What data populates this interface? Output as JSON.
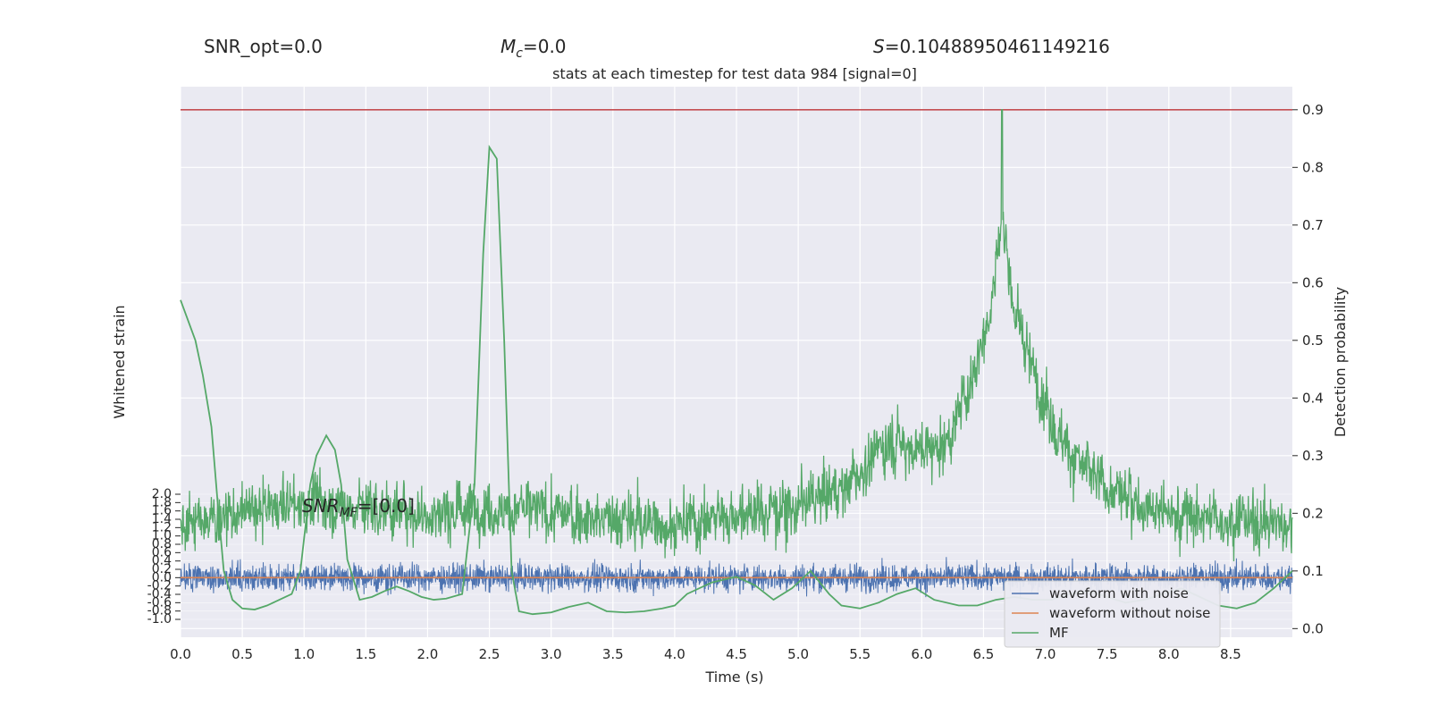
{
  "header": {
    "snr_opt": "SNR_opt=0.0",
    "mc_symbol": "M",
    "mc_sub": "c",
    "mc_value": "=0.0",
    "s_symbol": "S",
    "s_value": "=0.10488950461149216"
  },
  "annotation": {
    "snr_mf_symbol": "SNR",
    "snr_mf_sub": "MF",
    "snr_mf_value": "=[0.0]"
  },
  "chart_data": {
    "type": "line",
    "title": "stats at each timestep for test data 984 [signal=0]",
    "xlabel": "Time (s)",
    "ylabel_left": "Whitened strain",
    "ylabel_right": "Detection probability",
    "xlim": [
      0.0,
      9.0
    ],
    "xticks": [
      "0.0",
      "0.5",
      "1.0",
      "1.5",
      "2.0",
      "2.5",
      "3.0",
      "3.5",
      "4.0",
      "4.5",
      "5.0",
      "5.5",
      "6.0",
      "6.5",
      "7.0",
      "7.5",
      "8.0",
      "8.5"
    ],
    "ylim_right": [
      -0.015,
      0.94
    ],
    "yticks_right": [
      "0.0",
      "0.1",
      "0.2",
      "0.3",
      "0.4",
      "0.5",
      "0.6",
      "0.7",
      "0.8",
      "0.9"
    ],
    "ylim_left": [
      -1.0,
      2.0
    ],
    "yticks_left": [
      "-1.0",
      "-0.8",
      "-0.6",
      "-0.4",
      "-0.2",
      "0.0",
      "0.2",
      "0.4",
      "0.6",
      "0.8",
      "1.0",
      "1.2",
      "1.4",
      "1.6",
      "1.8",
      "2.0"
    ],
    "threshold": 0.9,
    "legend_position": "lower-right",
    "legend": [
      "waveform with noise",
      "waveform without noise",
      "MF"
    ],
    "colors": {
      "threshold": "#c44e52",
      "waveform_with_noise": "#4c72b0",
      "waveform_without_noise": "#dd8452",
      "detection_probability": "#55a868",
      "mf": "#55a868",
      "plot_bg": "#eaeaf2",
      "grid": "#ffffff"
    },
    "series": [
      {
        "name": "waveform with noise",
        "type": "noise",
        "center": 0.0,
        "amplitude": 0.35
      },
      {
        "name": "waveform without noise",
        "values": [
          [
            0.0,
            0.0
          ],
          [
            9.0,
            0.0
          ]
        ]
      },
      {
        "name": "MF",
        "axis": "right",
        "points": [
          [
            0.0,
            0.57
          ],
          [
            0.12,
            0.5
          ],
          [
            0.18,
            0.44
          ],
          [
            0.25,
            0.35
          ],
          [
            0.3,
            0.22
          ],
          [
            0.35,
            0.1
          ],
          [
            0.42,
            0.05
          ],
          [
            0.5,
            0.035
          ],
          [
            0.6,
            0.033
          ],
          [
            0.7,
            0.04
          ],
          [
            0.8,
            0.05
          ],
          [
            0.9,
            0.06
          ],
          [
            0.97,
            0.1
          ],
          [
            1.05,
            0.25
          ],
          [
            1.1,
            0.3
          ],
          [
            1.18,
            0.335
          ],
          [
            1.25,
            0.31
          ],
          [
            1.3,
            0.25
          ],
          [
            1.35,
            0.12
          ],
          [
            1.45,
            0.05
          ],
          [
            1.55,
            0.055
          ],
          [
            1.65,
            0.065
          ],
          [
            1.75,
            0.073
          ],
          [
            1.85,
            0.065
          ],
          [
            1.95,
            0.055
          ],
          [
            2.05,
            0.05
          ],
          [
            2.15,
            0.052
          ],
          [
            2.28,
            0.06
          ],
          [
            2.38,
            0.25
          ],
          [
            2.45,
            0.65
          ],
          [
            2.5,
            0.835
          ],
          [
            2.56,
            0.815
          ],
          [
            2.62,
            0.5
          ],
          [
            2.68,
            0.1
          ],
          [
            2.74,
            0.03
          ],
          [
            2.85,
            0.025
          ],
          [
            3.0,
            0.028
          ],
          [
            3.15,
            0.038
          ],
          [
            3.3,
            0.045
          ],
          [
            3.45,
            0.03
          ],
          [
            3.6,
            0.028
          ],
          [
            3.75,
            0.03
          ],
          [
            3.9,
            0.035
          ],
          [
            4.0,
            0.04
          ],
          [
            4.1,
            0.06
          ],
          [
            4.3,
            0.08
          ],
          [
            4.5,
            0.09
          ],
          [
            4.65,
            0.075
          ],
          [
            4.8,
            0.05
          ],
          [
            4.95,
            0.07
          ],
          [
            5.1,
            0.1
          ],
          [
            5.25,
            0.06
          ],
          [
            5.35,
            0.04
          ],
          [
            5.5,
            0.035
          ],
          [
            5.65,
            0.045
          ],
          [
            5.8,
            0.06
          ],
          [
            5.95,
            0.07
          ],
          [
            6.1,
            0.05
          ],
          [
            6.3,
            0.04
          ],
          [
            6.45,
            0.04
          ],
          [
            6.6,
            0.05
          ],
          [
            6.75,
            0.055
          ],
          [
            6.9,
            0.05
          ],
          [
            7.05,
            0.05
          ],
          [
            7.2,
            0.06
          ],
          [
            7.35,
            0.065
          ],
          [
            7.5,
            0.055
          ],
          [
            7.65,
            0.045
          ],
          [
            7.8,
            0.05
          ],
          [
            7.95,
            0.06
          ],
          [
            8.1,
            0.07
          ],
          [
            8.25,
            0.055
          ],
          [
            8.4,
            0.04
          ],
          [
            8.55,
            0.035
          ],
          [
            8.7,
            0.045
          ],
          [
            8.85,
            0.07
          ],
          [
            9.0,
            0.1
          ]
        ]
      },
      {
        "name": "Detection probability",
        "type": "noisy-envelope",
        "axis": "right",
        "envelope": [
          [
            0.0,
            0.18
          ],
          [
            0.5,
            0.2
          ],
          [
            1.0,
            0.22
          ],
          [
            1.5,
            0.21
          ],
          [
            2.0,
            0.2
          ],
          [
            2.5,
            0.21
          ],
          [
            3.0,
            0.2
          ],
          [
            3.5,
            0.19
          ],
          [
            4.0,
            0.18
          ],
          [
            4.5,
            0.2
          ],
          [
            5.0,
            0.21
          ],
          [
            5.4,
            0.25
          ],
          [
            5.75,
            0.33
          ],
          [
            6.0,
            0.31
          ],
          [
            6.2,
            0.32
          ],
          [
            6.4,
            0.43
          ],
          [
            6.55,
            0.55
          ],
          [
            6.65,
            0.72
          ],
          [
            6.75,
            0.55
          ],
          [
            6.9,
            0.45
          ],
          [
            7.1,
            0.34
          ],
          [
            7.3,
            0.28
          ],
          [
            7.5,
            0.24
          ],
          [
            8.0,
            0.2
          ],
          [
            8.5,
            0.19
          ],
          [
            9.0,
            0.18
          ]
        ],
        "peak": [
          6.65,
          0.9
        ],
        "noise_amplitude": 0.09,
        "floor": 0.03
      }
    ]
  }
}
